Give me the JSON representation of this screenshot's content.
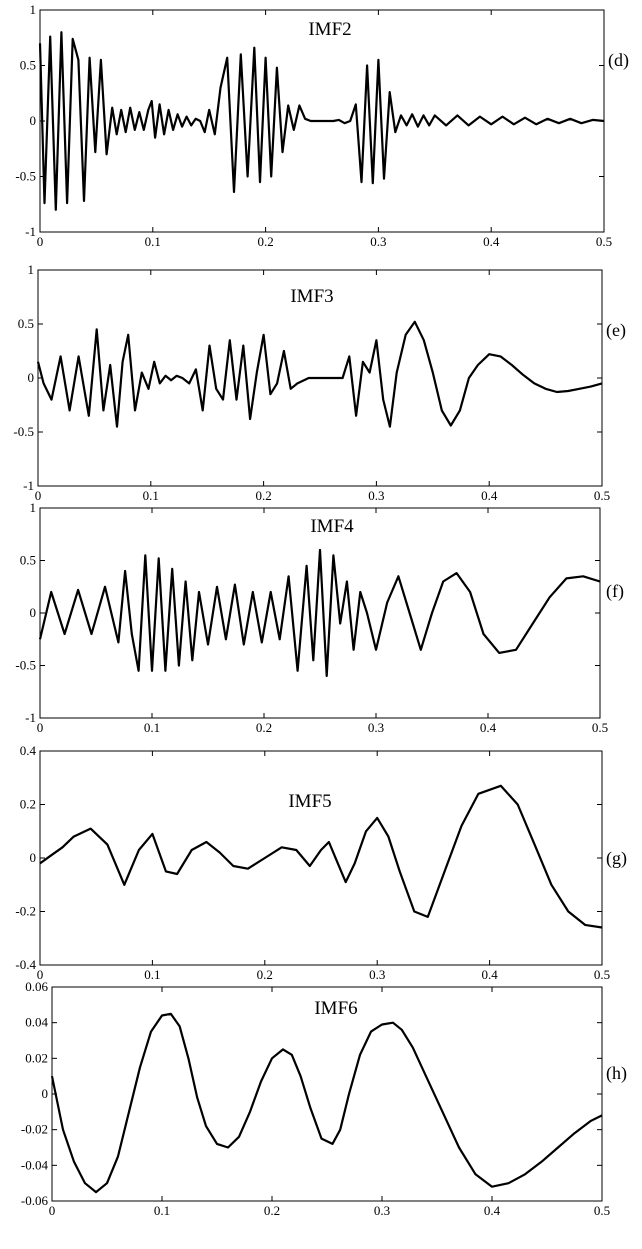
{
  "chart_data": [
    {
      "type": "line",
      "panel_label": "(d)",
      "title": "IMF2",
      "xlim": [
        0,
        0.5
      ],
      "ylim": [
        -1,
        1
      ],
      "xticks": [
        "0",
        "0.1",
        "0.2",
        "0.3",
        "0.4",
        "0.5"
      ],
      "yticks": [
        "1",
        "0.5",
        "0",
        "-0.5",
        "-1"
      ],
      "grid": false,
      "series": [
        {
          "x": [
            0,
            0.004,
            0.009,
            0.014,
            0.019,
            0.024,
            0.029,
            0.034,
            0.039,
            0.044,
            0.049,
            0.054,
            0.059,
            0.064,
            0.068,
            0.072,
            0.076,
            0.08,
            0.084,
            0.088,
            0.092,
            0.096,
            0.099,
            0.102,
            0.106,
            0.11,
            0.114,
            0.118,
            0.122,
            0.126,
            0.13,
            0.134,
            0.138,
            0.142,
            0.146,
            0.15,
            0.155,
            0.16,
            0.166,
            0.172,
            0.178,
            0.184,
            0.19,
            0.195,
            0.2,
            0.205,
            0.21,
            0.215,
            0.22,
            0.225,
            0.23,
            0.235,
            0.24,
            0.245,
            0.25,
            0.255,
            0.26,
            0.265,
            0.27,
            0.275,
            0.28,
            0.285,
            0.29,
            0.295,
            0.3,
            0.305,
            0.31,
            0.315,
            0.32,
            0.325,
            0.33,
            0.335,
            0.34,
            0.345,
            0.35,
            0.36,
            0.37,
            0.38,
            0.39,
            0.4,
            0.41,
            0.42,
            0.43,
            0.44,
            0.45,
            0.46,
            0.47,
            0.48,
            0.49,
            0.5
          ],
          "y": [
            0.7,
            -0.74,
            0.76,
            -0.8,
            0.8,
            -0.74,
            0.74,
            0.55,
            -0.72,
            0.57,
            -0.28,
            0.55,
            -0.3,
            0.12,
            -0.12,
            0.1,
            -0.1,
            0.12,
            -0.08,
            0.08,
            -0.08,
            0.1,
            0.18,
            -0.15,
            0.15,
            -0.12,
            0.1,
            -0.08,
            0.06,
            -0.05,
            0.04,
            -0.04,
            0.02,
            0.0,
            -0.1,
            0.1,
            -0.12,
            0.3,
            0.57,
            -0.64,
            0.6,
            -0.5,
            0.66,
            -0.55,
            0.57,
            -0.5,
            0.48,
            -0.28,
            0.14,
            -0.08,
            0.14,
            0.02,
            0.0,
            0.0,
            0.0,
            0.0,
            0.0,
            0.01,
            -0.02,
            0.0,
            0.15,
            -0.55,
            0.5,
            -0.56,
            0.55,
            -0.52,
            0.26,
            -0.1,
            0.05,
            -0.04,
            0.06,
            -0.05,
            0.05,
            -0.04,
            0.05,
            -0.04,
            0.05,
            -0.04,
            0.04,
            -0.03,
            0.04,
            -0.03,
            0.03,
            -0.03,
            0.02,
            -0.02,
            0.02,
            -0.02,
            0.01,
            0.0
          ]
        }
      ]
    },
    {
      "type": "line",
      "panel_label": "(e)",
      "title": "IMF3",
      "xlim": [
        0,
        0.5
      ],
      "ylim": [
        -1,
        1
      ],
      "xticks": [
        "0",
        "0.1",
        "0.2",
        "0.3",
        "0.4",
        "0.5"
      ],
      "yticks": [
        "1",
        "0.5",
        "0",
        "-0.5",
        "-1"
      ],
      "grid": false,
      "series": [
        {
          "x": [
            0,
            0.005,
            0.012,
            0.02,
            0.028,
            0.036,
            0.045,
            0.052,
            0.058,
            0.064,
            0.07,
            0.075,
            0.08,
            0.086,
            0.092,
            0.098,
            0.103,
            0.108,
            0.113,
            0.118,
            0.123,
            0.128,
            0.134,
            0.14,
            0.146,
            0.152,
            0.158,
            0.164,
            0.17,
            0.176,
            0.182,
            0.188,
            0.194,
            0.2,
            0.206,
            0.212,
            0.218,
            0.224,
            0.23,
            0.24,
            0.25,
            0.26,
            0.27,
            0.276,
            0.282,
            0.288,
            0.294,
            0.3,
            0.306,
            0.312,
            0.318,
            0.326,
            0.334,
            0.342,
            0.35,
            0.358,
            0.366,
            0.374,
            0.382,
            0.39,
            0.4,
            0.41,
            0.42,
            0.43,
            0.44,
            0.45,
            0.46,
            0.47,
            0.48,
            0.49,
            0.5
          ],
          "y": [
            0.15,
            -0.05,
            -0.2,
            0.2,
            -0.3,
            0.2,
            -0.35,
            0.45,
            -0.3,
            0.12,
            -0.45,
            0.15,
            0.4,
            -0.3,
            0.05,
            -0.1,
            0.15,
            -0.05,
            0.02,
            -0.02,
            0.02,
            0.0,
            -0.05,
            0.08,
            -0.3,
            0.3,
            -0.1,
            -0.2,
            0.35,
            -0.2,
            0.3,
            -0.38,
            0.05,
            0.4,
            -0.15,
            -0.05,
            0.25,
            -0.1,
            -0.05,
            0.0,
            0.0,
            0.0,
            0.0,
            0.2,
            -0.35,
            0.15,
            0.05,
            0.35,
            -0.2,
            -0.45,
            0.05,
            0.4,
            0.52,
            0.35,
            0.05,
            -0.3,
            -0.44,
            -0.3,
            0.0,
            0.12,
            0.22,
            0.2,
            0.12,
            0.03,
            -0.05,
            -0.1,
            -0.13,
            -0.12,
            -0.1,
            -0.08,
            -0.05
          ]
        }
      ]
    },
    {
      "type": "line",
      "panel_label": "(f)",
      "title": "IMF4",
      "xlim": [
        0,
        0.5
      ],
      "ylim": [
        -1,
        1
      ],
      "xticks": [
        "0",
        "0.1",
        "0.2",
        "0.3",
        "0.4",
        "0.5"
      ],
      "yticks": [
        "1",
        "0.5",
        "0",
        "-0.5",
        "-1"
      ],
      "grid": false,
      "series": [
        {
          "x": [
            0,
            0.01,
            0.022,
            0.034,
            0.046,
            0.058,
            0.07,
            0.076,
            0.082,
            0.088,
            0.094,
            0.1,
            0.106,
            0.112,
            0.118,
            0.124,
            0.13,
            0.136,
            0.142,
            0.15,
            0.158,
            0.166,
            0.174,
            0.182,
            0.19,
            0.198,
            0.206,
            0.214,
            0.222,
            0.23,
            0.238,
            0.244,
            0.25,
            0.256,
            0.262,
            0.268,
            0.274,
            0.28,
            0.286,
            0.292,
            0.3,
            0.31,
            0.32,
            0.33,
            0.34,
            0.35,
            0.36,
            0.372,
            0.384,
            0.396,
            0.41,
            0.425,
            0.44,
            0.455,
            0.47,
            0.485,
            0.5
          ],
          "y": [
            -0.25,
            0.2,
            -0.2,
            0.22,
            -0.2,
            0.25,
            -0.28,
            0.4,
            -0.2,
            -0.55,
            0.55,
            -0.55,
            0.52,
            -0.55,
            0.42,
            -0.5,
            0.3,
            -0.45,
            0.2,
            -0.3,
            0.25,
            -0.25,
            0.27,
            -0.3,
            0.2,
            -0.28,
            0.2,
            -0.25,
            0.35,
            -0.55,
            0.45,
            -0.45,
            0.6,
            -0.6,
            0.55,
            -0.1,
            0.3,
            -0.35,
            0.2,
            0.0,
            -0.35,
            0.1,
            0.35,
            0.0,
            -0.35,
            0.0,
            0.3,
            0.38,
            0.2,
            -0.2,
            -0.38,
            -0.35,
            -0.1,
            0.15,
            0.33,
            0.35,
            0.3
          ]
        }
      ]
    },
    {
      "type": "line",
      "panel_label": "(g)",
      "title": "IMF5",
      "xlim": [
        0,
        0.5
      ],
      "ylim": [
        -0.4,
        0.4
      ],
      "xticks": [
        "0",
        "0.1",
        "0.2",
        "0.3",
        "0.4",
        "0.5"
      ],
      "yticks": [
        "0.4",
        "0.2",
        "0",
        "-0.2",
        "-0.4"
      ],
      "grid": false,
      "series": [
        {
          "x": [
            0,
            0.01,
            0.02,
            0.03,
            0.045,
            0.06,
            0.075,
            0.088,
            0.1,
            0.112,
            0.122,
            0.135,
            0.148,
            0.16,
            0.172,
            0.185,
            0.2,
            0.215,
            0.228,
            0.24,
            0.25,
            0.257,
            0.264,
            0.272,
            0.28,
            0.29,
            0.3,
            0.31,
            0.32,
            0.333,
            0.345,
            0.36,
            0.375,
            0.39,
            0.41,
            0.425,
            0.44,
            0.455,
            0.47,
            0.485,
            0.5
          ],
          "y": [
            -0.02,
            0.01,
            0.04,
            0.08,
            0.11,
            0.05,
            -0.1,
            0.03,
            0.09,
            -0.05,
            -0.06,
            0.03,
            0.06,
            0.02,
            -0.03,
            -0.04,
            0.0,
            0.04,
            0.03,
            -0.03,
            0.03,
            0.06,
            -0.01,
            -0.09,
            -0.02,
            0.1,
            0.15,
            0.08,
            -0.05,
            -0.2,
            -0.22,
            -0.05,
            0.12,
            0.24,
            0.27,
            0.2,
            0.05,
            -0.1,
            -0.2,
            -0.25,
            -0.26
          ]
        }
      ]
    },
    {
      "type": "line",
      "panel_label": "(h)",
      "title": "IMF6",
      "xlim": [
        0,
        0.5
      ],
      "ylim": [
        -0.06,
        0.06
      ],
      "xticks": [
        "0",
        "0.1",
        "0.2",
        "0.3",
        "0.4",
        "0.5"
      ],
      "yticks": [
        "0.06",
        "0.04",
        "0.02",
        "0",
        "-0.02",
        "-0.04",
        "-0.06"
      ],
      "grid": false,
      "series": [
        {
          "x": [
            0,
            0.01,
            0.02,
            0.03,
            0.04,
            0.05,
            0.06,
            0.07,
            0.08,
            0.09,
            0.1,
            0.108,
            0.116,
            0.124,
            0.132,
            0.14,
            0.15,
            0.16,
            0.17,
            0.18,
            0.19,
            0.2,
            0.21,
            0.218,
            0.226,
            0.235,
            0.245,
            0.255,
            0.262,
            0.27,
            0.28,
            0.29,
            0.3,
            0.31,
            0.318,
            0.328,
            0.34,
            0.355,
            0.37,
            0.385,
            0.4,
            0.415,
            0.43,
            0.445,
            0.46,
            0.475,
            0.49,
            0.5
          ],
          "y": [
            0.01,
            -0.02,
            -0.038,
            -0.05,
            -0.055,
            -0.05,
            -0.035,
            -0.01,
            0.015,
            0.035,
            0.044,
            0.045,
            0.038,
            0.02,
            -0.002,
            -0.018,
            -0.028,
            -0.03,
            -0.024,
            -0.01,
            0.007,
            0.02,
            0.025,
            0.022,
            0.01,
            -0.008,
            -0.025,
            -0.028,
            -0.02,
            0.0,
            0.022,
            0.035,
            0.039,
            0.04,
            0.036,
            0.026,
            0.01,
            -0.01,
            -0.03,
            -0.045,
            -0.052,
            -0.05,
            -0.045,
            -0.038,
            -0.03,
            -0.022,
            -0.015,
            -0.012
          ]
        }
      ]
    }
  ]
}
